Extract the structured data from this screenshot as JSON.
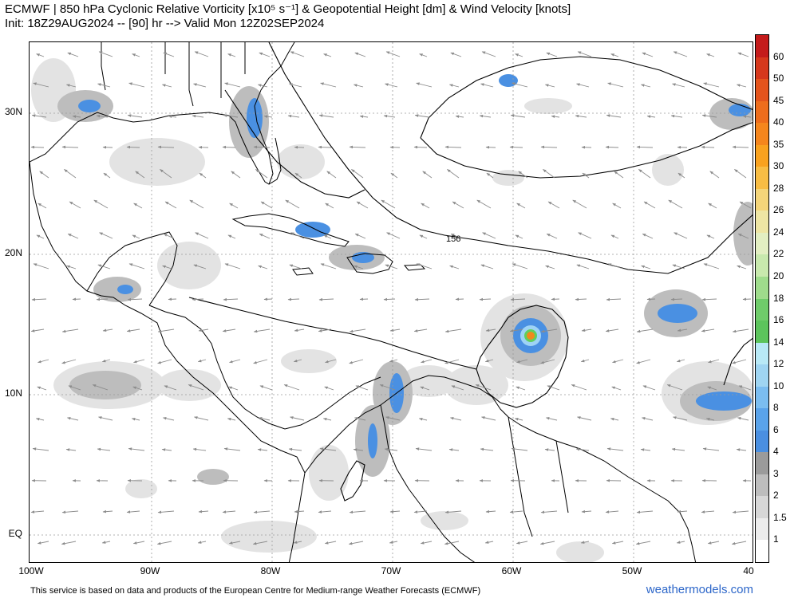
{
  "header": {
    "title_line1": "ECMWF | 850 hPa Cyclonic Relative Vorticity [x10⁵ s⁻¹] & Geopotential Height [dm] & Wind Velocity [knots]",
    "title_line2": "Init: 18Z29AUG2024 -- [90] hr --> Valid Mon 12Z02SEP2024"
  },
  "map": {
    "lat_labels": [
      "30N",
      "20N",
      "10N",
      "EQ"
    ],
    "lon_labels": [
      "100W",
      "90W",
      "80W",
      "70W",
      "60W",
      "50W",
      "40"
    ],
    "contour_label": "156",
    "colors": {
      "light_gray": "#e3e3e3",
      "mid_gray": "#bdbdbd",
      "dark_gray": "#9a9a9a",
      "blue": "#4a90e2",
      "light_blue": "#9ed3f5",
      "green": "#5fcf5f",
      "orange": "#f08a1c",
      "arrow": "#8c8c8c"
    }
  },
  "colorbar": {
    "labels": [
      "60",
      "50",
      "45",
      "40",
      "35",
      "30",
      "28",
      "26",
      "24",
      "22",
      "20",
      "18",
      "16",
      "14",
      "12",
      "10",
      "8",
      "6",
      "4",
      "3",
      "2",
      "1.5",
      "1"
    ],
    "colors": [
      "#c41b1b",
      "#d6381c",
      "#e4541c",
      "#ee6d1c",
      "#f5861d",
      "#f9a21f",
      "#f8bd44",
      "#f4d57a",
      "#eee6a4",
      "#e3efc2",
      "#c8e9ad",
      "#9fdc8c",
      "#6fcc6a",
      "#5cc45c",
      "#b8e9f6",
      "#9fd5f2",
      "#7bbdf0",
      "#5aa3ea",
      "#4a8fe1",
      "#9b9b9b",
      "#bdbdbd",
      "#d7d7d7",
      "#ececec",
      "#ffffff"
    ]
  },
  "footer": {
    "disclaimer": "This service is based on data and products of the European Centre for Medium-range Weather Forecasts (ECMWF)",
    "brand": "weathermodels.com"
  }
}
